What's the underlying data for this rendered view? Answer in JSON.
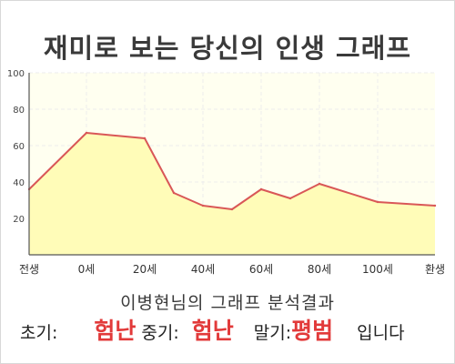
{
  "title": "재미로 보는 당신의 인생 그래프",
  "summary": {
    "heading": "이병현님의 그래프 분석결과",
    "early_label": "초기:",
    "early_value": "험난",
    "mid_label": "중기:",
    "mid_value": "험난",
    "late_label": "말기:",
    "late_value": "평범",
    "suffix": "입니다"
  },
  "colors": {
    "line": "#d95757",
    "fill": "#fffcb8",
    "highlight": "#e23a3a"
  },
  "chart_data": {
    "type": "area",
    "categories": [
      "전생",
      "0세",
      "20세",
      "40세",
      "60세",
      "80세",
      "100세",
      "환생"
    ],
    "points": [
      {
        "x": "전생",
        "y": 36
      },
      {
        "x": "0세",
        "y": 67
      },
      {
        "x": "20세",
        "y": 64
      },
      {
        "x": "30세",
        "y": 34
      },
      {
        "x": "40세",
        "y": 27
      },
      {
        "x": "50세",
        "y": 25
      },
      {
        "x": "60세",
        "y": 36
      },
      {
        "x": "70세",
        "y": 31
      },
      {
        "x": "80세",
        "y": 39
      },
      {
        "x": "100세",
        "y": 29
      },
      {
        "x": "환생",
        "y": 27
      }
    ],
    "y_ticks": [
      20,
      40,
      60,
      80,
      100
    ],
    "ylim": [
      0,
      100
    ],
    "grid": true,
    "legend": "none"
  }
}
